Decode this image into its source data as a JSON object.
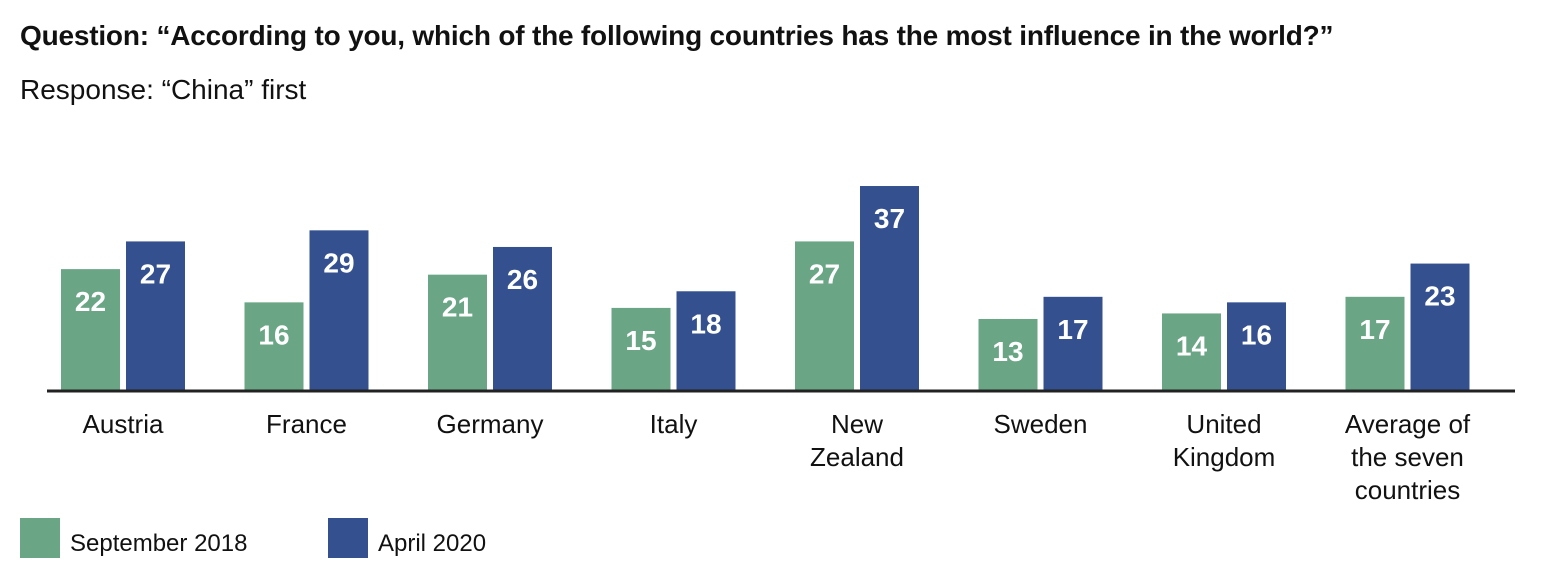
{
  "chart_data": {
    "type": "bar",
    "title": "Question: “According to you, which of the following countries has the most influence in the world?”",
    "subtitle": "Response: “China” first",
    "categories": [
      [
        "Austria"
      ],
      [
        "France"
      ],
      [
        "Germany"
      ],
      [
        "Italy"
      ],
      [
        "New",
        "Zealand"
      ],
      [
        "Sweden"
      ],
      [
        "United",
        "Kingdom"
      ],
      [
        "Average of",
        "the seven",
        "countries"
      ]
    ],
    "series": [
      {
        "name": "September 2018",
        "color": "#6aa586",
        "values": [
          22,
          16,
          21,
          15,
          27,
          13,
          14,
          17
        ]
      },
      {
        "name": "April 2020",
        "color": "#34508e",
        "values": [
          27,
          29,
          26,
          18,
          37,
          17,
          16,
          23
        ]
      }
    ],
    "ylim": [
      0,
      37
    ],
    "legend": "bottom-left",
    "grid": false
  }
}
